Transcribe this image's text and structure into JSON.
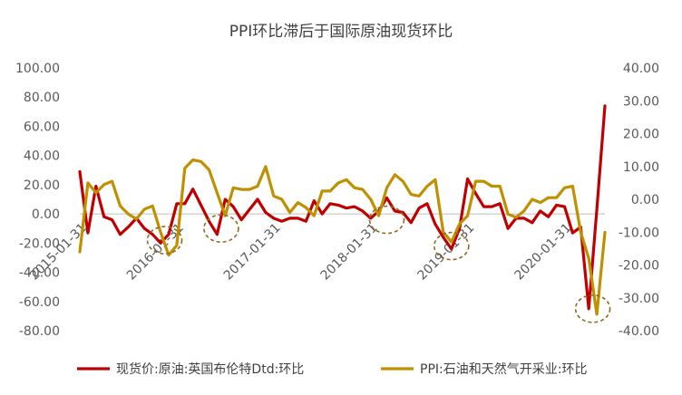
{
  "chart_data": {
    "type": "line",
    "title": "PPI环比滞后于国际原油现货环比",
    "x_tick_labels": [
      "2015-01-31",
      "2016-01-31",
      "2017-01-31",
      "2018-01-31",
      "2019-01-31",
      "2020-01-31"
    ],
    "x_tick_positions": [
      0,
      12,
      24,
      36,
      48,
      60
    ],
    "y_left": {
      "ticks": [
        "100.00",
        "80.00",
        "60.00",
        "40.00",
        "20.00",
        "0.00",
        "-20.00",
        "-40.00",
        "-60.00",
        "-80.00"
      ],
      "ylim": [
        -80,
        100
      ]
    },
    "y_right": {
      "ticks": [
        "40.00",
        "30.00",
        "20.00",
        "10.00",
        "0.00",
        "-10.00",
        "-20.00",
        "-30.00",
        "-40.00"
      ],
      "ylim": [
        -40,
        40
      ]
    },
    "series": [
      {
        "name": "现货价:原油:英国布伦特Dtd:环比",
        "axis": "left",
        "color": "#c00000",
        "values": [
          29.0,
          -13.0,
          19.0,
          -2.0,
          -4.0,
          -14.0,
          -9.0,
          -3.0,
          -10.0,
          -14.0,
          -20.0,
          -14.0,
          7.0,
          7.0,
          17.0,
          6.0,
          -5.0,
          -14.0,
          10.0,
          5.0,
          -4.0,
          3.0,
          10.0,
          1.0,
          -3.0,
          -5.0,
          -3.0,
          -3.0,
          -5.0,
          9.0,
          0.0,
          7.0,
          6.0,
          4.0,
          5.0,
          2.0,
          -3.0,
          2.0,
          11.0,
          2.0,
          1.0,
          -6.0,
          4.0,
          7.0,
          -7.0,
          -16.0,
          -24.0,
          -10.0,
          24.0,
          14.0,
          5.0,
          5.0,
          7.0,
          -10.0,
          -3.0,
          -3.0,
          -6.0,
          2.0,
          -2.0,
          6.0,
          5.0,
          -13.0,
          -9.0,
          -65.0,
          3.0,
          74.0
        ]
      },
      {
        "name": "PPI:石油和天然气开采业:环比",
        "axis": "right",
        "color": "#bf9000",
        "values": [
          -16.0,
          5.0,
          2.0,
          4.5,
          5.5,
          -2.0,
          -4.5,
          -6.0,
          -3.0,
          -2.0,
          -10.0,
          -17.0,
          -14.0,
          9.5,
          12.0,
          11.5,
          9.0,
          2.0,
          -5.0,
          3.5,
          3.0,
          3.0,
          4.0,
          10.0,
          1.0,
          0.0,
          -4.0,
          -1.0,
          -2.5,
          -5.0,
          2.5,
          2.5,
          5.0,
          6.0,
          3.5,
          3.0,
          0.0,
          -5.0,
          3.5,
          7.5,
          5.5,
          1.5,
          1.0,
          4.0,
          6.0,
          -10.0,
          -13.0,
          -7.5,
          -5.0,
          5.5,
          5.5,
          4.0,
          4.0,
          -4.5,
          -5.5,
          -3.5,
          0.0,
          -1.0,
          0.5,
          0.5,
          3.5,
          4.0,
          -10.0,
          -18.0,
          -35.0,
          -10.0
        ]
      }
    ],
    "annotations": [
      {
        "shape": "dashed-ellipse",
        "x": 10.5,
        "axis": "left",
        "y": -18
      },
      {
        "shape": "dashed-ellipse",
        "x": 17.5,
        "axis": "left",
        "y": -10
      },
      {
        "shape": "dashed-ellipse",
        "x": 38.0,
        "axis": "left",
        "y": -4
      },
      {
        "shape": "dashed-ellipse",
        "x": 46.0,
        "axis": "left",
        "y": -22
      },
      {
        "shape": "dashed-ellipse",
        "x": 63.5,
        "axis": "left",
        "y": -65
      }
    ],
    "legend_position": "bottom",
    "grid": false
  }
}
